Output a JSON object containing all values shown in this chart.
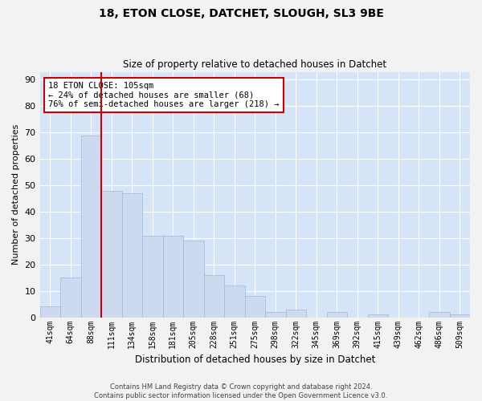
{
  "title_line1": "18, ETON CLOSE, DATCHET, SLOUGH, SL3 9BE",
  "title_line2": "Size of property relative to detached houses in Datchet",
  "xlabel": "Distribution of detached houses by size in Datchet",
  "ylabel": "Number of detached properties",
  "categories": [
    "41sqm",
    "64sqm",
    "88sqm",
    "111sqm",
    "134sqm",
    "158sqm",
    "181sqm",
    "205sqm",
    "228sqm",
    "251sqm",
    "275sqm",
    "298sqm",
    "322sqm",
    "345sqm",
    "369sqm",
    "392sqm",
    "415sqm",
    "439sqm",
    "462sqm",
    "486sqm",
    "509sqm"
  ],
  "values": [
    4,
    15,
    69,
    48,
    47,
    31,
    31,
    29,
    16,
    12,
    8,
    2,
    3,
    0,
    2,
    0,
    1,
    0,
    0,
    2,
    1
  ],
  "bar_color": "#ccd9ee",
  "bar_edgecolor": "#a0b8d8",
  "vline_color": "#cc0000",
  "vline_x": 2.5,
  "annotation_line1": "18 ETON CLOSE: 105sqm",
  "annotation_line2": "← 24% of detached houses are smaller (68)",
  "annotation_line3": "76% of semi-detached houses are larger (218) →",
  "annotation_box_facecolor": "#ffffff",
  "annotation_box_edgecolor": "#cc0000",
  "ylim": [
    0,
    93
  ],
  "yticks": [
    0,
    10,
    20,
    30,
    40,
    50,
    60,
    70,
    80,
    90
  ],
  "grid_color": "#ffffff",
  "plot_bg_color": "#d6e4f7",
  "fig_bg_color": "#f2f2f2",
  "footer_line1": "Contains HM Land Registry data © Crown copyright and database right 2024.",
  "footer_line2": "Contains public sector information licensed under the Open Government Licence v3.0."
}
